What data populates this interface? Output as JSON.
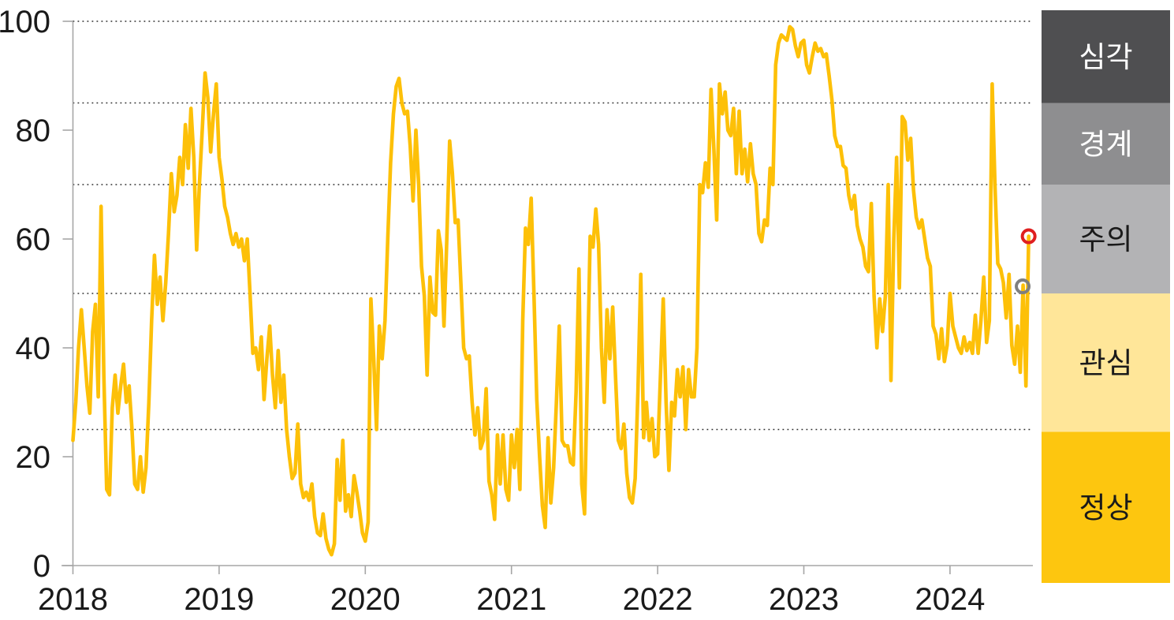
{
  "chart_data": {
    "type": "line",
    "description": "Weekly market risk index (0-100) from 2018 to mid-2024 with five alert-level bands",
    "x_axis": {
      "tick_years": [
        2018,
        2019,
        2020,
        2021,
        2022,
        2023,
        2024
      ],
      "tick_labels": [
        "2018",
        "2019",
        "2020",
        "2021",
        "2022",
        "2023",
        "2024"
      ]
    },
    "y_axis": {
      "range": [
        0,
        100
      ],
      "tick_values": [
        0,
        20,
        40,
        60,
        80,
        100
      ],
      "tick_labels": [
        "0",
        "20",
        "40",
        "60",
        "80",
        "100"
      ]
    },
    "threshold_gridlines": [
      25,
      50,
      70,
      85,
      100
    ],
    "series": [
      {
        "name": "risk-index",
        "color": "#FDC008",
        "x_start_year": 2018.0,
        "x_step_years": 0.0192308,
        "values": [
          23,
          30,
          40,
          47,
          40,
          33,
          28,
          43,
          48,
          31,
          66,
          35,
          14,
          13,
          29,
          35,
          28,
          33,
          37,
          30,
          33,
          25,
          15,
          14,
          20,
          13.5,
          18,
          30,
          45,
          57,
          48,
          53,
          45,
          52,
          61,
          72,
          65,
          68,
          75,
          70,
          81,
          73,
          84,
          75,
          58,
          70,
          80,
          90.5,
          86,
          76,
          83,
          88.5,
          75,
          71,
          66,
          64,
          61,
          59,
          61,
          58.5,
          60,
          56,
          60,
          50,
          39,
          40,
          36,
          42,
          30.5,
          38,
          44,
          35,
          29,
          39.5,
          30,
          35,
          25,
          20,
          16,
          17,
          26,
          15,
          12.5,
          13.5,
          12,
          15,
          9,
          6,
          5.5,
          9.5,
          5,
          3,
          2,
          4,
          19.5,
          12,
          23,
          10,
          13,
          9,
          16.5,
          13.5,
          10,
          6,
          4.5,
          8,
          49,
          38,
          25,
          44,
          38,
          45,
          60,
          74,
          83,
          88,
          89.5,
          85,
          83,
          83.5,
          77,
          67,
          80,
          70,
          55,
          49.5,
          35,
          53,
          46.5,
          46,
          61.5,
          58,
          44,
          60,
          78,
          72,
          63,
          63.5,
          52,
          40,
          38,
          38.5,
          30,
          24,
          29,
          21.5,
          23,
          32.5,
          15.5,
          13,
          8.5,
          24,
          15,
          24,
          14,
          12,
          24,
          18,
          25,
          14,
          45,
          62,
          59,
          67.5,
          50,
          30.5,
          20,
          11,
          7,
          23.5,
          11.5,
          18,
          30,
          44,
          23,
          22,
          22,
          19,
          18.5,
          32,
          54.5,
          15,
          9.5,
          35,
          60.5,
          58.5,
          65.5,
          59,
          40,
          30,
          47,
          38,
          47.5,
          35,
          23,
          21.5,
          26,
          17,
          12.5,
          11.5,
          16,
          32,
          53.5,
          23.5,
          30,
          23,
          27,
          20,
          20.5,
          35,
          49,
          30,
          17.5,
          30,
          27.5,
          36,
          31,
          36.5,
          25,
          36,
          31,
          31,
          40,
          70,
          68.5,
          74,
          69.5,
          87.5,
          76.5,
          63.5,
          88.5,
          83,
          87,
          80,
          79,
          84,
          72,
          83.5,
          72,
          76.5,
          70.5,
          77.5,
          72,
          70,
          61,
          59.5,
          63.5,
          62.5,
          73,
          70,
          92,
          96,
          97.5,
          97,
          96.5,
          99,
          98.5,
          95.5,
          93.5,
          96,
          96.5,
          92,
          90.5,
          93.5,
          96,
          94.5,
          95,
          93.5,
          94,
          90,
          85.5,
          79,
          77,
          77,
          73.5,
          73,
          68,
          65.5,
          68,
          62.5,
          60,
          58.5,
          55,
          54,
          66.5,
          49.5,
          40,
          49,
          43,
          49.5,
          70,
          34,
          60,
          75,
          51,
          82.5,
          81.5,
          74.5,
          78.5,
          69,
          64,
          62,
          63.5,
          60,
          56.5,
          55,
          44,
          42.5,
          38,
          43.5,
          37.5,
          40.5,
          50,
          44,
          42,
          40,
          39,
          42,
          39.5,
          41,
          39,
          46,
          39,
          45,
          53,
          41,
          45,
          88.5,
          70,
          55.5,
          54.5,
          52,
          45.5,
          53.5,
          40.5,
          37,
          44,
          35.5,
          51.5,
          33,
          60.5
        ]
      }
    ],
    "markers": [
      {
        "name": "latest-point",
        "shape": "ring",
        "color": "#DF1F1F",
        "x_year": 2024.538,
        "value": 60.5
      },
      {
        "name": "previous-point",
        "shape": "ring",
        "color": "#7F7F7F",
        "x_year": 2024.497,
        "value": 51.3
      }
    ],
    "legend_bands": [
      {
        "label": "심각",
        "level": "severe",
        "color": "#4F4F51",
        "text_color": "#FFFFFF",
        "value_range": [
          85,
          100
        ]
      },
      {
        "label": "경계",
        "level": "alert",
        "color": "#8E8E90",
        "text_color": "#FFFFFF",
        "value_range": [
          70,
          85
        ]
      },
      {
        "label": "주의",
        "level": "caution",
        "color": "#B3B3B5",
        "text_color": "#1A1A1A",
        "value_range": [
          50,
          70
        ]
      },
      {
        "label": "관심",
        "level": "watch",
        "color": "#FFE699",
        "text_color": "#1A1A1A",
        "value_range": [
          25,
          50
        ]
      },
      {
        "label": "정상",
        "level": "normal",
        "color": "#FDC60F",
        "text_color": "#1A1A1A",
        "value_range": [
          0,
          25
        ]
      }
    ],
    "style_colors": {
      "axis": "#A6A6A6",
      "gridline": "#2B2B2B",
      "tick_text": "#1A1A1A"
    }
  }
}
